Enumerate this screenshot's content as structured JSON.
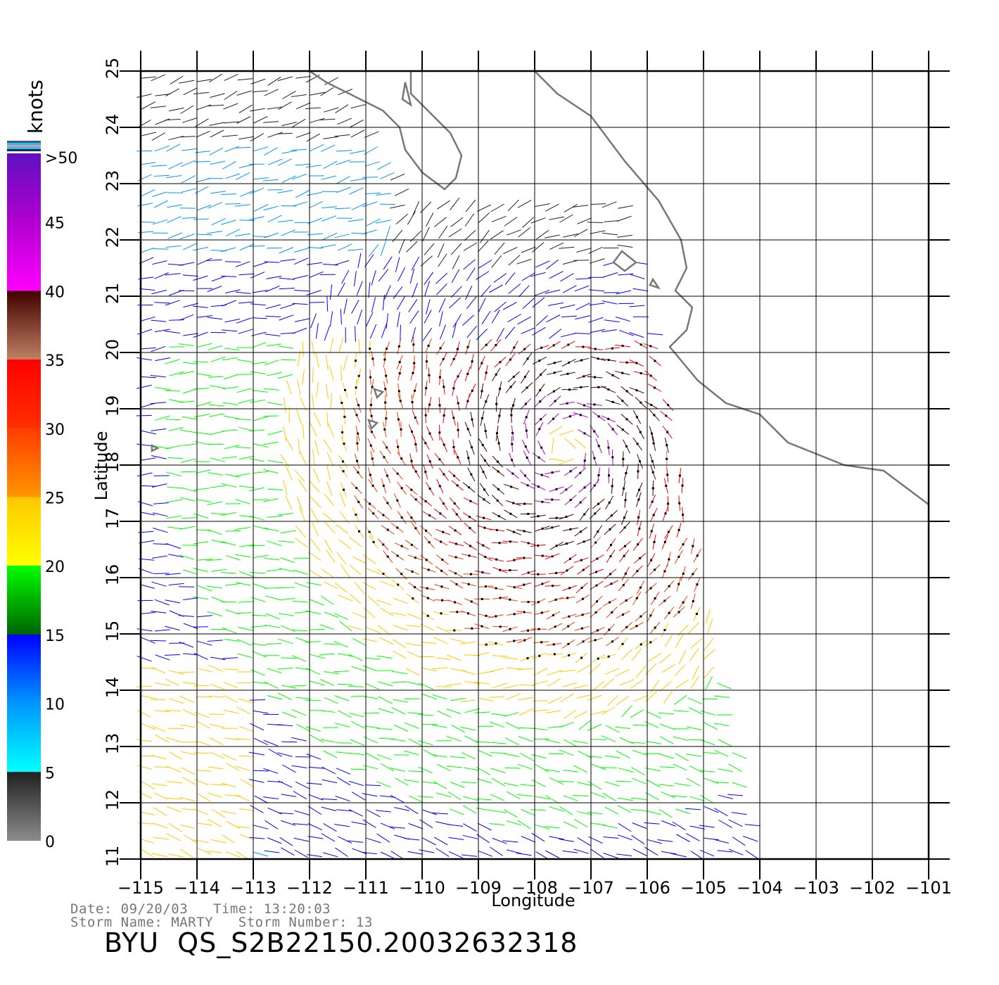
{
  "map": {
    "lon_range": [
      -115,
      -101
    ],
    "lat_range": [
      11,
      25
    ],
    "lon_ticks": [
      "−115",
      "−114",
      "−113",
      "−112",
      "−111",
      "−110",
      "−109",
      "−108",
      "−107",
      "−106",
      "−105",
      "−104",
      "−103",
      "−102",
      "−101"
    ],
    "lat_ticks": [
      "11",
      "12",
      "13",
      "14",
      "15",
      "16",
      "17",
      "18",
      "19",
      "20",
      "21",
      "22",
      "23",
      "24",
      "25"
    ],
    "xlabel": "Longitude",
    "ylabel": "Latitude",
    "grid": true,
    "coast_color": "#777777",
    "storm_center": {
      "lon": -107.5,
      "lat": 18.3
    },
    "swath_edge": {
      "top_lon": -106.0,
      "bottom_lon": -104.0
    }
  },
  "colorbar": {
    "unit_label": "knots",
    "labels": [
      ">50",
      "45",
      "40",
      "35",
      "30",
      "25",
      "20",
      "15",
      "10",
      "5",
      "0"
    ],
    "stops": [
      {
        "knots": 0,
        "color": "#8c8c8c"
      },
      {
        "knots": 5,
        "color": "#202020"
      },
      {
        "knots": 5.01,
        "color": "#00ffff"
      },
      {
        "knots": 10,
        "color": "#0096ff"
      },
      {
        "knots": 15,
        "color": "#0000ff"
      },
      {
        "knots": 15.01,
        "color": "#006400"
      },
      {
        "knots": 20,
        "color": "#00ff00"
      },
      {
        "knots": 20.01,
        "color": "#ffff00"
      },
      {
        "knots": 25,
        "color": "#ffc800"
      },
      {
        "knots": 25.01,
        "color": "#ff9600"
      },
      {
        "knots": 30,
        "color": "#ff3c00"
      },
      {
        "knots": 30.01,
        "color": "#ff3000"
      },
      {
        "knots": 35,
        "color": "#ff0000"
      },
      {
        "knots": 35.01,
        "color": "#c08060"
      },
      {
        "knots": 40,
        "color": "#400000"
      },
      {
        "knots": 40.01,
        "color": "#ff00ff"
      },
      {
        "knots": 45,
        "color": "#b000d0"
      },
      {
        "knots": 50,
        "color": "#6010c0"
      }
    ]
  },
  "info": {
    "line1": "Date: 09/20/03   Time: 13:20:03",
    "line2": "Storm Name: MARTY   Storm Number: 13",
    "product": "BYU  QS_S2B22150.20032632318"
  }
}
